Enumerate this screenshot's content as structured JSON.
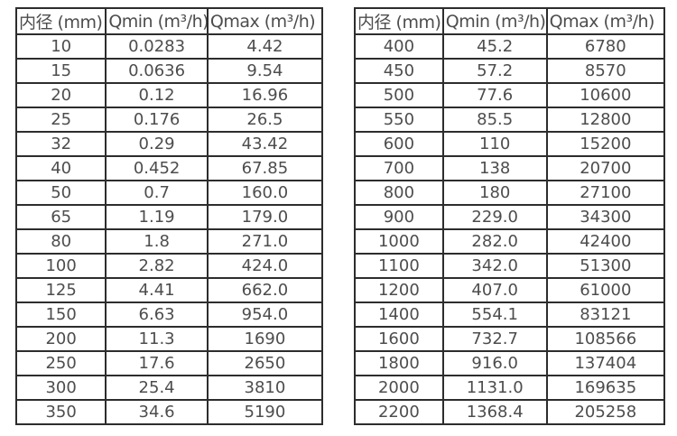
{
  "page": {
    "background": "#ffffff",
    "text_color": "#4d4d4d",
    "border_color": "#2d2d2d"
  },
  "tables": [
    {
      "name": "flow-table-small-diameters",
      "headers": [
        "内径 (mm)",
        "Qmin (m³/h)",
        "Qmax (m³/h)"
      ],
      "rows": [
        [
          "10",
          "0.0283",
          "4.42"
        ],
        [
          "15",
          "0.0636",
          "9.54"
        ],
        [
          "20",
          "0.12",
          "16.96"
        ],
        [
          "25",
          "0.176",
          "26.5"
        ],
        [
          "32",
          "0.29",
          "43.42"
        ],
        [
          "40",
          "0.452",
          "67.85"
        ],
        [
          "50",
          "0.7",
          "160.0"
        ],
        [
          "65",
          "1.19",
          "179.0"
        ],
        [
          "80",
          "1.8",
          "271.0"
        ],
        [
          "100",
          "2.82",
          "424.0"
        ],
        [
          "125",
          "4.41",
          "662.0"
        ],
        [
          "150",
          "6.63",
          "954.0"
        ],
        [
          "200",
          "11.3",
          "1690"
        ],
        [
          "250",
          "17.6",
          "2650"
        ],
        [
          "300",
          "25.4",
          "3810"
        ],
        [
          "350",
          "34.6",
          "5190"
        ]
      ]
    },
    {
      "name": "flow-table-large-diameters",
      "headers": [
        "内径 (mm)",
        "Qmin (m³/h)",
        "Qmax (m³/h)"
      ],
      "rows": [
        [
          "400",
          "45.2",
          "6780"
        ],
        [
          "450",
          "57.2",
          "8570"
        ],
        [
          "500",
          "77.6",
          "10600"
        ],
        [
          "550",
          "85.5",
          "12800"
        ],
        [
          "600",
          "110",
          "15200"
        ],
        [
          "700",
          "138",
          "20700"
        ],
        [
          "800",
          "180",
          "27100"
        ],
        [
          "900",
          "229.0",
          "34300"
        ],
        [
          "1000",
          "282.0",
          "42400"
        ],
        [
          "1100",
          "342.0",
          "51300"
        ],
        [
          "1200",
          "407.0",
          "61000"
        ],
        [
          "1400",
          "554.1",
          "83121"
        ],
        [
          "1600",
          "732.7",
          "108566"
        ],
        [
          "1800",
          "916.0",
          "137404"
        ],
        [
          "2000",
          "1131.0",
          "169635"
        ],
        [
          "2200",
          "1368.4",
          "205258"
        ]
      ]
    }
  ]
}
